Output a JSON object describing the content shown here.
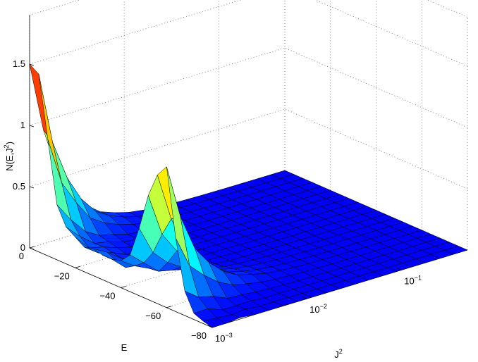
{
  "chart_data": {
    "type": "surface",
    "title": "",
    "zlabel": "N(E,J2)",
    "zlabel_main": "N(E,J",
    "zlabel_sup": "2",
    "zlabel_end": ")",
    "xlabel": "E",
    "ylabel_main": "J",
    "ylabel_sup": "2",
    "y_scale": "log",
    "grid": true,
    "colormap": "jet",
    "zlim": [
      0,
      1.5
    ],
    "E_ticks": [
      {
        "value": 0,
        "label": "0"
      },
      {
        "value": -20,
        "label": "−20"
      },
      {
        "value": -40,
        "label": "−40"
      },
      {
        "value": -60,
        "label": "−60"
      },
      {
        "value": -80,
        "label": "−80"
      }
    ],
    "J2_ticks": [
      {
        "value": 0.001,
        "base": "10",
        "exp": "−3"
      },
      {
        "value": 0.01,
        "base": "10",
        "exp": "−2"
      },
      {
        "value": 0.1,
        "base": "10",
        "exp": "−1"
      }
    ],
    "z_ticks": [
      {
        "value": 0,
        "label": "0"
      },
      {
        "value": 0.5,
        "label": "0.5"
      },
      {
        "value": 1,
        "label": "1"
      },
      {
        "value": 1.5,
        "label": "1.5"
      }
    ],
    "E_grid": [
      0,
      -4,
      -8,
      -12,
      -16,
      -20,
      -24,
      -28,
      -32,
      -36,
      -40,
      -44,
      -48,
      -52,
      -56,
      -60,
      -64,
      -68,
      -72,
      -76,
      -80
    ],
    "J2_grid": [
      0.001,
      0.0014,
      0.002,
      0.0028,
      0.004,
      0.0056,
      0.008,
      0.0112,
      0.016,
      0.0224,
      0.032,
      0.0448,
      0.064,
      0.0896,
      0.128,
      0.179,
      0.256,
      0.358,
      0.5
    ],
    "N_at_smallest_J2": [
      1.5,
      1.45,
      0.95,
      0.45,
      0.3,
      0.25,
      0.2,
      0.22,
      0.2,
      0.2,
      0.22,
      0.3,
      0.55,
      0.85,
      1.05,
      1.15,
      0.6,
      0.2,
      0.05,
      0.02,
      0.0
    ],
    "N_at_largest_J2": 0.0
  }
}
